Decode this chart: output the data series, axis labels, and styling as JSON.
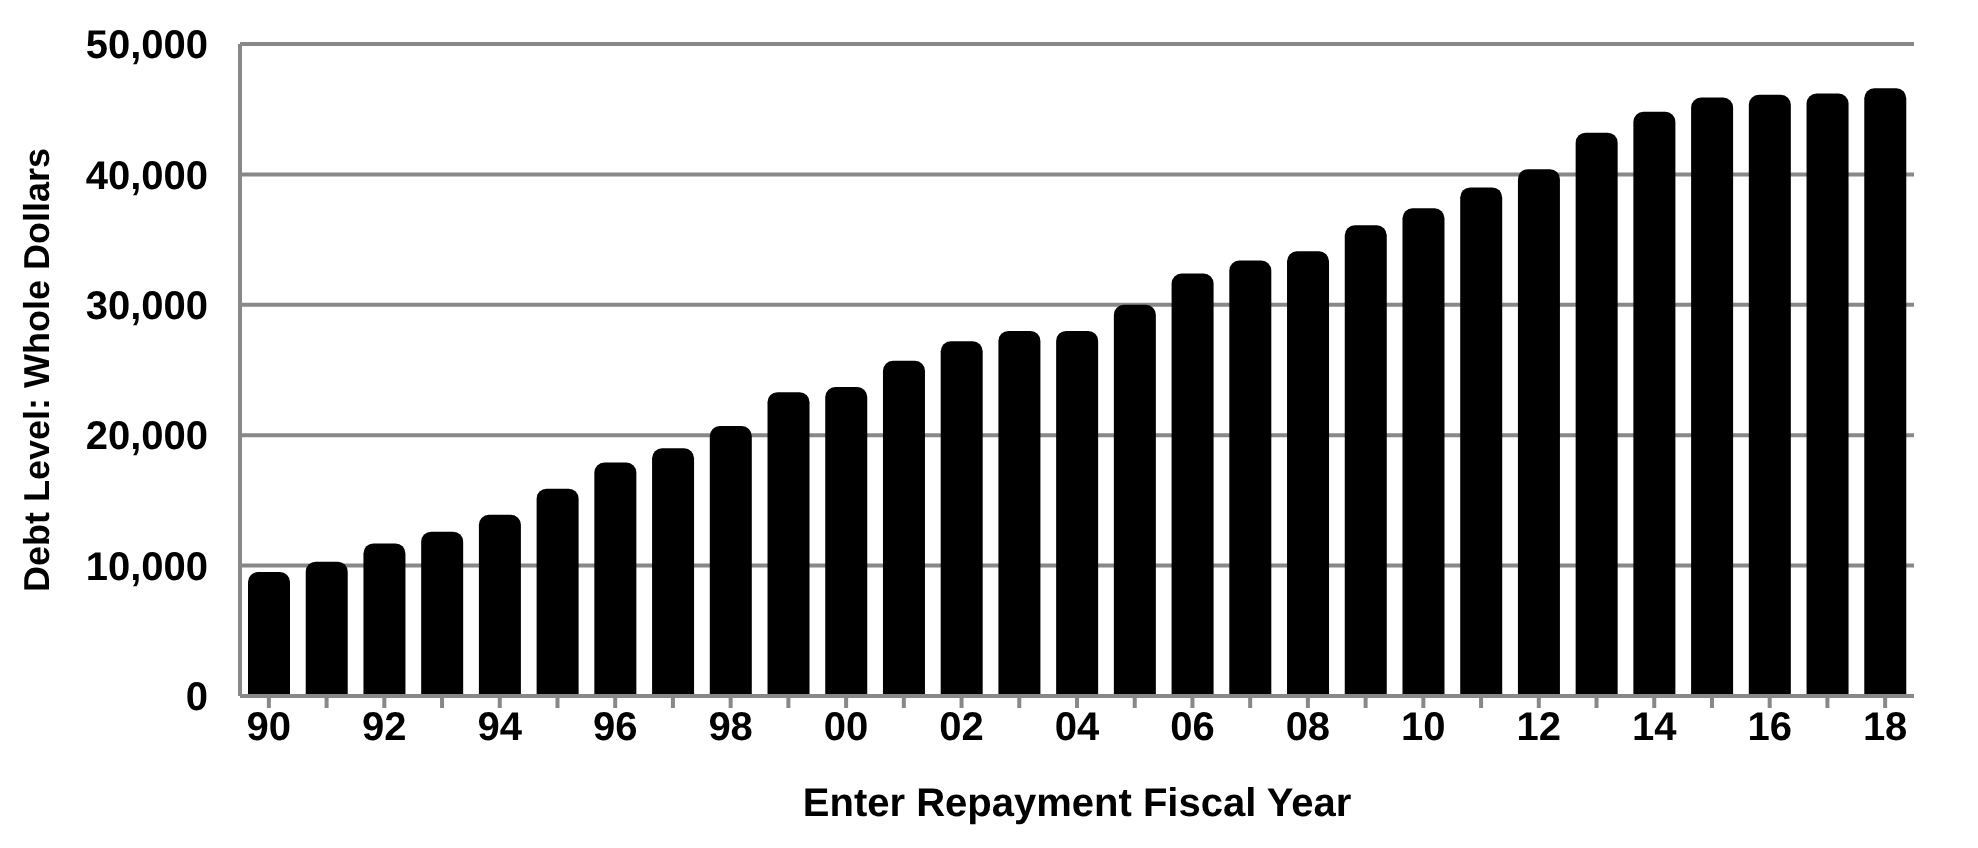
{
  "chart_data": {
    "type": "bar",
    "xlabel": "Enter Repayment Fiscal Year",
    "ylabel": "Debt Level:  Whole Dollars",
    "categories": [
      "90",
      null,
      "92",
      null,
      "94",
      null,
      "96",
      null,
      "98",
      null,
      "00",
      null,
      "02",
      null,
      "04",
      null,
      "06",
      null,
      "08",
      null,
      "10",
      null,
      "12",
      null,
      "14",
      null,
      "16",
      null,
      "18"
    ],
    "values": [
      9500,
      10300,
      11700,
      12600,
      13900,
      15900,
      17900,
      19000,
      20700,
      23300,
      23700,
      25700,
      27200,
      28000,
      28000,
      30000,
      32400,
      33400,
      34100,
      36100,
      37400,
      39000,
      40400,
      43200,
      44800,
      45900,
      46100,
      46200,
      46600
    ],
    "color": "#000000",
    "ylim": [
      0,
      50000
    ],
    "yticks": [
      {
        "value": 0,
        "label": "0"
      },
      {
        "value": 10000,
        "label": "10,000"
      },
      {
        "value": 20000,
        "label": "20,000"
      },
      {
        "value": 30000,
        "label": "30,000"
      },
      {
        "value": 40000,
        "label": "40,000"
      },
      {
        "value": 50000,
        "label": "50,000"
      }
    ],
    "grid": "y"
  }
}
